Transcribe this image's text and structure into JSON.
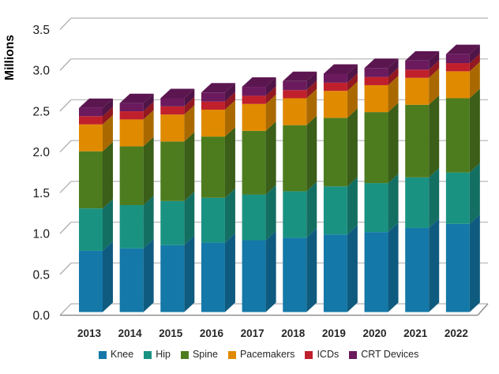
{
  "chart_data": {
    "type": "bar",
    "variant": "3d-stacked-column",
    "title": "",
    "ylabel": "Millions",
    "xlabel": "",
    "ylim": [
      0,
      3.5
    ],
    "ytick_step": 0.5,
    "ytick_labels": [
      "0.0",
      "0.5",
      "1.0",
      "1.5",
      "2.0",
      "2.5",
      "3.0",
      "3.5"
    ],
    "grid": true,
    "legend_position": "bottom",
    "categories": [
      "2013",
      "2014",
      "2015",
      "2016",
      "2017",
      "2018",
      "2019",
      "2020",
      "2021",
      "2022"
    ],
    "series": [
      {
        "name": "Knee",
        "color": "#1478A8",
        "values": [
          0.75,
          0.78,
          0.82,
          0.85,
          0.88,
          0.91,
          0.95,
          0.98,
          1.03,
          1.08
        ]
      },
      {
        "name": "Hip",
        "color": "#1A9282",
        "values": [
          0.52,
          0.53,
          0.54,
          0.55,
          0.56,
          0.57,
          0.59,
          0.6,
          0.62,
          0.63
        ]
      },
      {
        "name": "Spine",
        "color": "#4D7C1F",
        "values": [
          0.7,
          0.72,
          0.73,
          0.75,
          0.78,
          0.81,
          0.84,
          0.87,
          0.89,
          0.91
        ]
      },
      {
        "name": "Pacemakers",
        "color": "#E08A00",
        "values": [
          0.33,
          0.33,
          0.33,
          0.33,
          0.33,
          0.33,
          0.33,
          0.33,
          0.33,
          0.33
        ]
      },
      {
        "name": "ICDs",
        "color": "#C0202C",
        "values": [
          0.1,
          0.1,
          0.1,
          0.1,
          0.1,
          0.1,
          0.1,
          0.1,
          0.1,
          0.1
        ]
      },
      {
        "name": "CRT Devices",
        "color": "#6B1A5E",
        "values": [
          0.1,
          0.1,
          0.1,
          0.11,
          0.11,
          0.11,
          0.11,
          0.11,
          0.11,
          0.11
        ]
      }
    ]
  },
  "colors": {
    "background": "#FFFFFF",
    "gridline": "#BFBFBF",
    "floor_line": "#8F8F8F",
    "tick_line": "#A6A6A6",
    "axis_label": "#1A1A1A",
    "category_label": "#262626"
  }
}
